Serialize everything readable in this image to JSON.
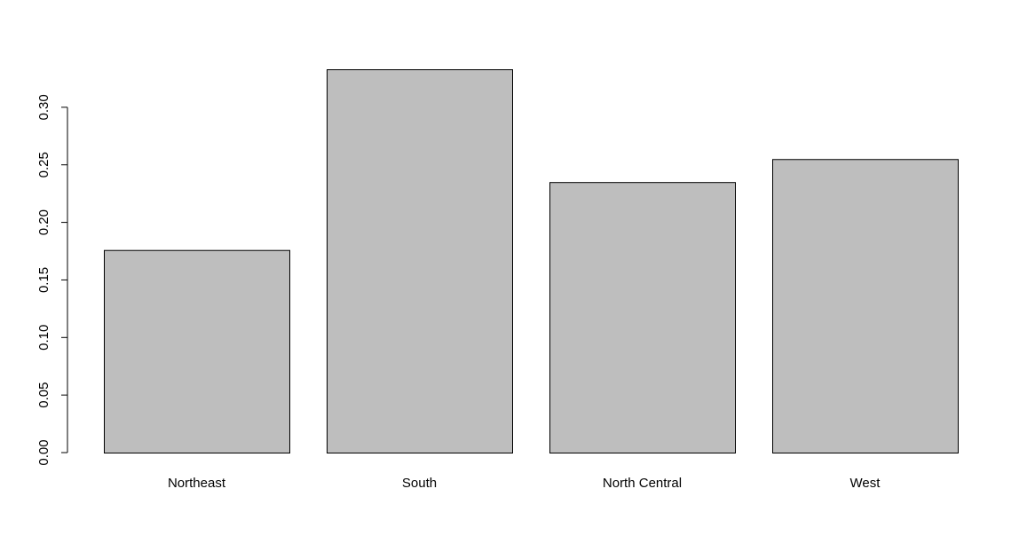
{
  "chart_data": {
    "type": "bar",
    "categories": [
      "Northeast",
      "South",
      "North Central",
      "West"
    ],
    "values": [
      0.176,
      0.333,
      0.235,
      0.255
    ],
    "color": "#bebebe",
    "ylim": [
      0,
      0.34
    ],
    "yticks": [
      {
        "value": 0,
        "label": "0.00"
      },
      {
        "value": 0.05,
        "label": "0.05"
      },
      {
        "value": 0.1,
        "label": "0.10"
      },
      {
        "value": 0.15,
        "label": "0.15"
      },
      {
        "value": 0.2,
        "label": "0.20"
      },
      {
        "value": 0.25,
        "label": "0.25"
      },
      {
        "value": 0.3,
        "label": "0.30"
      }
    ]
  }
}
